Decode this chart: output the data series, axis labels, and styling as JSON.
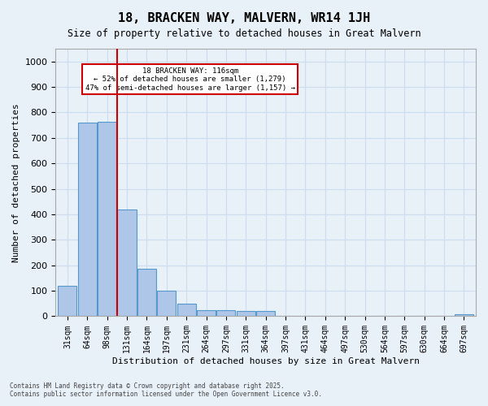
{
  "title1": "18, BRACKEN WAY, MALVERN, WR14 1JH",
  "title2": "Size of property relative to detached houses in Great Malvern",
  "xlabel": "Distribution of detached houses by size in Great Malvern",
  "ylabel": "Number of detached properties",
  "bar_labels": [
    "31sqm",
    "64sqm",
    "98sqm",
    "131sqm",
    "164sqm",
    "197sqm",
    "231sqm",
    "264sqm",
    "297sqm",
    "331sqm",
    "364sqm",
    "397sqm",
    "431sqm",
    "464sqm",
    "497sqm",
    "530sqm",
    "564sqm",
    "597sqm",
    "630sqm",
    "664sqm",
    "697sqm"
  ],
  "bar_values": [
    120,
    760,
    762,
    420,
    185,
    100,
    48,
    25,
    25,
    20,
    20,
    0,
    0,
    0,
    0,
    0,
    0,
    0,
    0,
    0,
    8
  ],
  "bar_color": "#aec6e8",
  "bar_edge_color": "#5599cc",
  "vline_x": 2.5,
  "vline_color": "#cc0000",
  "annotation_text": "18 BRACKEN WAY: 116sqm\n← 52% of detached houses are smaller (1,279)\n47% of semi-detached houses are larger (1,157) →",
  "annotation_box_color": "#ffffff",
  "annotation_box_edge": "#cc0000",
  "ylim": [
    0,
    1050
  ],
  "yticks": [
    0,
    100,
    200,
    300,
    400,
    500,
    600,
    700,
    800,
    900,
    1000
  ],
  "grid_color": "#ccddee",
  "bg_color": "#e8f0f8",
  "footer1": "Contains HM Land Registry data © Crown copyright and database right 2025.",
  "footer2": "Contains public sector information licensed under the Open Government Licence v3.0."
}
